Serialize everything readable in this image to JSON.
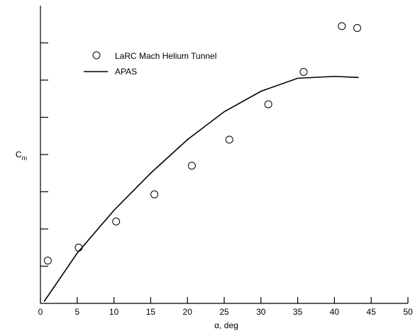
{
  "chart_data": {
    "type": "scatter",
    "title": "",
    "xlabel": "α, deg",
    "ylabel": "C",
    "ylabel_sub": "m",
    "xlim": [
      0,
      50
    ],
    "ylim": [
      0,
      8
    ],
    "x_ticks": [
      0,
      5,
      10,
      15,
      20,
      25,
      30,
      35,
      40,
      45,
      50
    ],
    "x_tick_labels": [
      "0",
      "5",
      "10",
      "15",
      "20",
      "25",
      "30",
      "35",
      "40",
      "45",
      "50"
    ],
    "y_ticks": [
      1,
      2,
      3,
      4,
      5,
      6,
      7
    ],
    "y_tick_labels_shown": false,
    "grid": false,
    "legend_position": "top-left",
    "series": [
      {
        "name": "LaRC Mach Helium Tunnel",
        "kind": "scatter",
        "marker": "open-circle",
        "x": [
          1.0,
          5.2,
          10.3,
          15.5,
          20.6,
          25.7,
          31.0,
          35.8,
          41.0,
          43.1
        ],
        "y": [
          1.15,
          1.5,
          2.2,
          2.93,
          3.7,
          4.4,
          5.35,
          6.22,
          7.45,
          7.4
        ]
      },
      {
        "name": "APAS",
        "kind": "line",
        "x": [
          0.5,
          5,
          10,
          15,
          20,
          25,
          30,
          35,
          40,
          43.3
        ],
        "y": [
          0.05,
          1.35,
          2.5,
          3.5,
          4.4,
          5.15,
          5.7,
          6.05,
          6.1,
          6.07
        ]
      }
    ]
  }
}
